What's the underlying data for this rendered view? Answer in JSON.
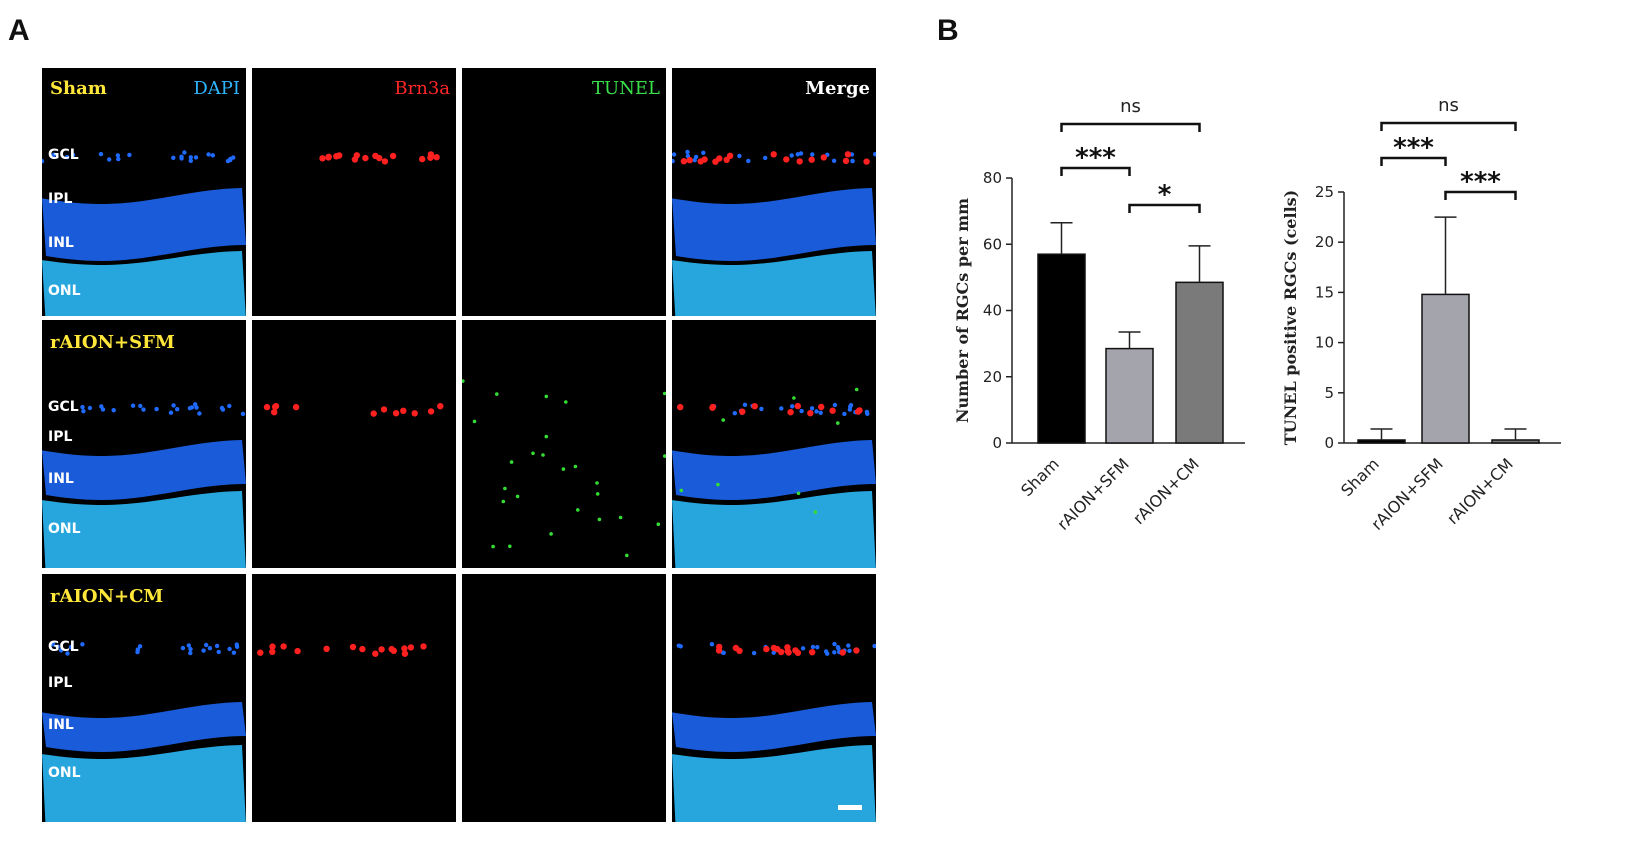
{
  "panels": {
    "a": "A",
    "b": "B"
  },
  "micrograph": {
    "channel_labels": [
      "DAPI",
      "Brn3a",
      "TUNEL",
      "Merge"
    ],
    "rows": [
      {
        "group": "Sham",
        "layers": [
          "GCL",
          "IPL",
          "INL",
          "ONL"
        ]
      },
      {
        "group": "rAION+SFM",
        "layers": [
          "GCL",
          "IPL",
          "INL",
          "ONL"
        ]
      },
      {
        "group": "rAION+CM",
        "layers": [
          "GCL",
          "IPL",
          "INL",
          "ONL"
        ]
      }
    ],
    "colors": {
      "dapi": "#1f6bff",
      "dapi_light": "#2ab8f5",
      "brn3a": "#ff2020",
      "tunel": "#33dd33"
    }
  },
  "chart_data": [
    {
      "type": "bar",
      "categories": [
        "Sham",
        "rAION+SFM",
        "rAION+CM"
      ],
      "values": [
        57,
        28.5,
        48.5
      ],
      "errors": [
        9.5,
        5,
        11
      ],
      "colors": [
        "#000000",
        "#a4a4ac",
        "#7a7a7a"
      ],
      "ylabel": "Number of RGCs per mm",
      "ylim": [
        0,
        80
      ],
      "yticks": [
        0,
        20,
        40,
        60,
        80
      ],
      "significance": [
        {
          "pair": [
            0,
            2
          ],
          "label": "ns"
        },
        {
          "pair": [
            0,
            1
          ],
          "label": "***"
        },
        {
          "pair": [
            1,
            2
          ],
          "label": "*"
        }
      ]
    },
    {
      "type": "bar",
      "categories": [
        "Sham",
        "rAION+SFM",
        "rAION+CM"
      ],
      "values": [
        0.3,
        14.8,
        0.3
      ],
      "errors": [
        1.1,
        7.7,
        1.1
      ],
      "colors": [
        "#000000",
        "#a4a4ac",
        "#7a7a7a"
      ],
      "ylabel": "TUNEL positive RGCs (cells)",
      "ylim": [
        0,
        25
      ],
      "yticks": [
        0,
        5,
        10,
        15,
        20,
        25
      ],
      "significance": [
        {
          "pair": [
            0,
            2
          ],
          "label": "ns"
        },
        {
          "pair": [
            0,
            1
          ],
          "label": "***"
        },
        {
          "pair": [
            1,
            2
          ],
          "label": "***"
        }
      ]
    }
  ]
}
